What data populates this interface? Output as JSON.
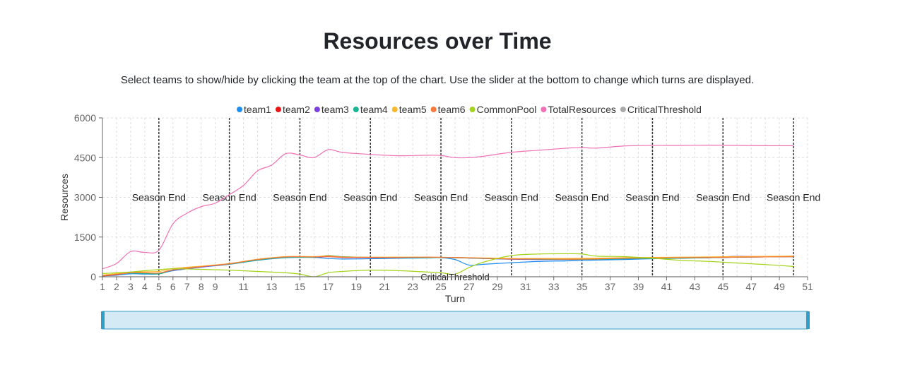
{
  "page": {
    "title": "Resources over Time",
    "subtitle": "Select teams to show/hide by clicking the team at the top of the chart. Use the slider at the bottom to change which turns are displayed."
  },
  "chart_data": {
    "type": "line",
    "xlabel": "Turn",
    "ylabel": "Resources",
    "xlim": [
      1,
      51
    ],
    "ylim": [
      0,
      6000
    ],
    "yticks": [
      0,
      1500,
      3000,
      4500,
      6000
    ],
    "xticks": [
      1,
      2,
      3,
      4,
      5,
      6,
      7,
      8,
      9,
      11,
      13,
      15,
      17,
      19,
      21,
      23,
      25,
      27,
      29,
      31,
      33,
      35,
      37,
      39,
      41,
      43,
      45,
      47,
      49,
      51
    ],
    "grid": true,
    "legend_position": "top",
    "season_ends": {
      "label": "Season End",
      "x": [
        5,
        10,
        15,
        20,
        25,
        30,
        35,
        40,
        45,
        50
      ],
      "label_y": 3000
    },
    "reference_line": {
      "name": "CriticalThreshold",
      "label": "CriticalThreshold",
      "y": 0,
      "x_label": 26
    },
    "series": [
      {
        "name": "team1",
        "color": "#1f8ef1",
        "x": [
          1,
          2,
          3,
          4,
          5,
          6,
          8,
          10,
          12,
          14,
          16,
          17,
          18,
          20,
          22,
          24,
          25,
          26,
          27,
          28,
          30,
          32,
          34,
          36,
          38,
          40,
          42,
          44,
          46,
          48,
          50
        ],
        "y": [
          30,
          60,
          110,
          100,
          110,
          230,
          360,
          470,
          620,
          720,
          730,
          690,
          670,
          680,
          700,
          710,
          720,
          650,
          440,
          470,
          530,
          580,
          600,
          630,
          650,
          680,
          700,
          720,
          740,
          750,
          760
        ]
      },
      {
        "name": "team2",
        "color": "#e81416",
        "x": [
          1,
          2,
          3,
          4,
          5,
          6,
          8,
          10,
          12,
          14,
          16,
          17,
          18,
          20,
          22,
          24,
          26,
          28,
          30,
          32,
          34,
          36,
          38,
          40,
          42,
          44,
          46,
          48,
          50
        ],
        "y": [
          30,
          80,
          160,
          140,
          130,
          260,
          380,
          480,
          640,
          740,
          740,
          760,
          730,
          720,
          720,
          730,
          720,
          700,
          680,
          680,
          670,
          670,
          690,
          700,
          710,
          720,
          740,
          750,
          760
        ]
      },
      {
        "name": "team3",
        "color": "#7b3fe4",
        "x": [
          1,
          2,
          3,
          4,
          5,
          6,
          8,
          10,
          12,
          14,
          16,
          17,
          18,
          20,
          22,
          24,
          26,
          28,
          30,
          32,
          34,
          36,
          38,
          40,
          42,
          44,
          46,
          48,
          50
        ],
        "y": [
          40,
          90,
          150,
          130,
          120,
          240,
          370,
          490,
          650,
          750,
          750,
          780,
          740,
          720,
          720,
          730,
          720,
          690,
          660,
          650,
          650,
          660,
          690,
          700,
          710,
          730,
          770,
          760,
          780
        ]
      },
      {
        "name": "team4",
        "color": "#1ab394",
        "x": [
          1,
          2,
          3,
          4,
          5,
          6,
          8,
          10,
          12,
          14,
          16,
          17,
          18,
          20,
          22,
          24,
          26,
          28,
          30,
          32,
          34,
          36,
          38,
          40,
          42,
          44,
          46,
          48,
          50
        ],
        "y": [
          50,
          100,
          140,
          120,
          110,
          250,
          390,
          480,
          630,
          730,
          740,
          800,
          760,
          730,
          720,
          720,
          720,
          690,
          670,
          660,
          650,
          660,
          680,
          690,
          700,
          720,
          740,
          750,
          760
        ]
      },
      {
        "name": "team5",
        "color": "#fdb827",
        "x": [
          1,
          2,
          3,
          4,
          5,
          6,
          8,
          10,
          12,
          14,
          16,
          17,
          18,
          20,
          22,
          24,
          26,
          28,
          30,
          32,
          34,
          36,
          38,
          40,
          42,
          44,
          46,
          48,
          50
        ],
        "y": [
          60,
          120,
          170,
          190,
          200,
          310,
          400,
          500,
          660,
          760,
          760,
          790,
          750,
          740,
          740,
          740,
          730,
          710,
          690,
          690,
          690,
          700,
          720,
          730,
          740,
          750,
          760,
          770,
          780
        ]
      },
      {
        "name": "team6",
        "color": "#f5793a",
        "x": [
          1,
          2,
          3,
          4,
          5,
          6,
          8,
          10,
          12,
          14,
          16,
          17,
          18,
          20,
          22,
          24,
          26,
          28,
          30,
          32,
          34,
          36,
          38,
          40,
          42,
          44,
          46,
          48,
          50
        ],
        "y": [
          40,
          90,
          150,
          150,
          140,
          260,
          380,
          490,
          650,
          750,
          750,
          770,
          740,
          730,
          730,
          740,
          730,
          700,
          670,
          670,
          660,
          670,
          700,
          710,
          720,
          730,
          740,
          750,
          760
        ]
      },
      {
        "name": "CommonPool",
        "color": "#a4d41a",
        "x": [
          1,
          2,
          3,
          4,
          5,
          6,
          8,
          10,
          12,
          14,
          15,
          16,
          17,
          18,
          20,
          22,
          24,
          25,
          26,
          27,
          28,
          30,
          32,
          34,
          35,
          36,
          38,
          40,
          42,
          44,
          46,
          48,
          50
        ],
        "y": [
          120,
          150,
          180,
          230,
          270,
          300,
          280,
          250,
          200,
          150,
          100,
          0,
          150,
          200,
          250,
          230,
          180,
          150,
          100,
          350,
          550,
          800,
          860,
          870,
          860,
          780,
          760,
          700,
          620,
          580,
          520,
          460,
          390
        ]
      },
      {
        "name": "TotalResources",
        "color": "#f072b6",
        "x": [
          1,
          2,
          3,
          4,
          5,
          6,
          7,
          8,
          9,
          10,
          11,
          12,
          13,
          14,
          15,
          16,
          17,
          18,
          20,
          22,
          24,
          25,
          26,
          27,
          28,
          30,
          32,
          34,
          35,
          36,
          38,
          40,
          42,
          44,
          46,
          48,
          50
        ],
        "y": [
          300,
          500,
          950,
          920,
          1000,
          2000,
          2400,
          2650,
          2780,
          3100,
          3450,
          4000,
          4220,
          4650,
          4600,
          4500,
          4800,
          4700,
          4620,
          4570,
          4590,
          4580,
          4500,
          4500,
          4550,
          4700,
          4780,
          4860,
          4880,
          4860,
          4940,
          4960,
          4960,
          4970,
          4960,
          4950,
          4950
        ]
      },
      {
        "name": "CriticalThreshold",
        "color": "#aaaaaa",
        "x": [
          1,
          50
        ],
        "y": [
          0,
          0
        ]
      }
    ]
  }
}
